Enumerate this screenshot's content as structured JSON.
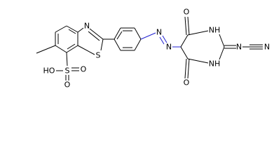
{
  "atoms": [
    "N",
    "S",
    "HO",
    "S",
    "O",
    "O",
    "N",
    "N",
    "O",
    "NH",
    "N",
    "N",
    "NH",
    "O"
  ]
}
